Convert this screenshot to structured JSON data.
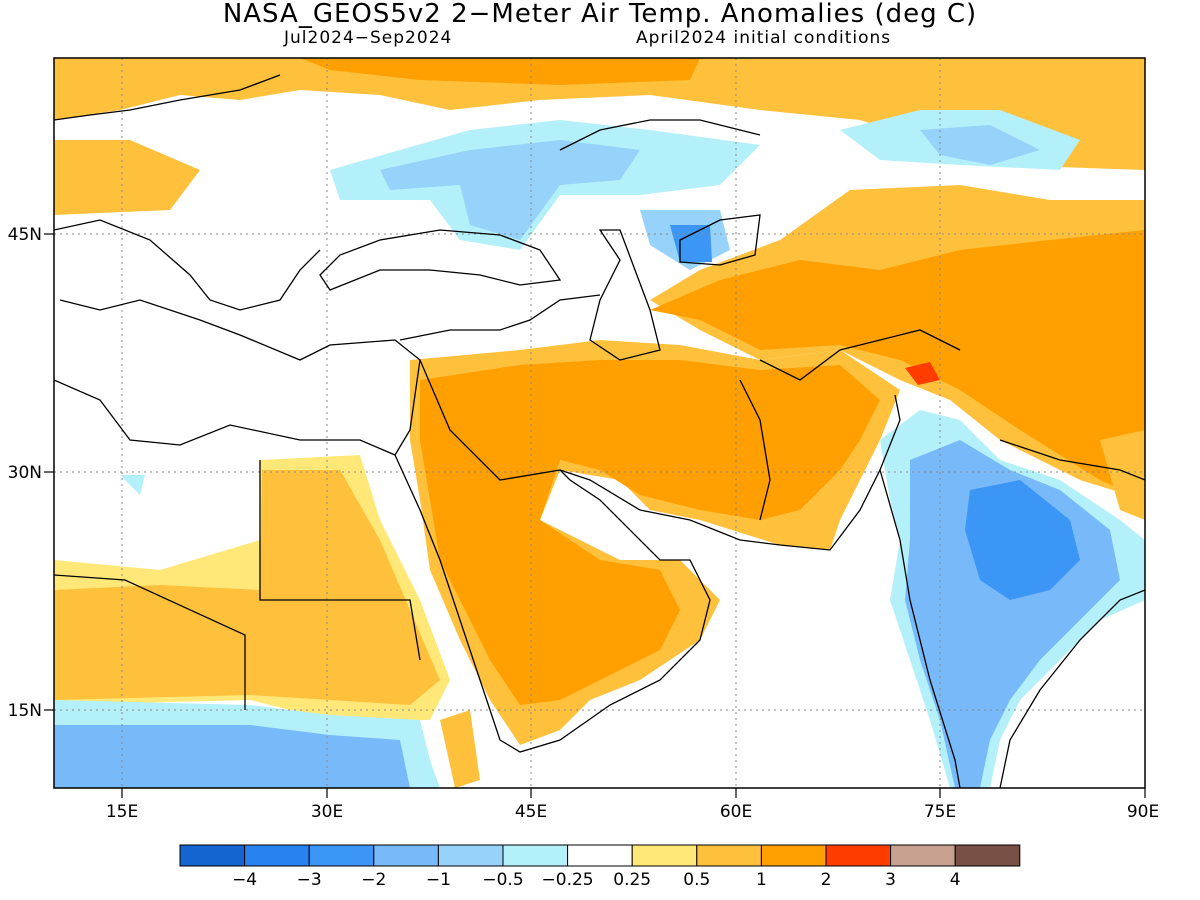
{
  "title": "NASA_GEOS5v2 2−Meter Air Temp. Anomalies (deg C)",
  "subtitle_left": "Jul2024−Sep2024",
  "subtitle_right": "April2024 initial conditions",
  "map": {
    "lon_range": [
      10,
      90
    ],
    "lat_range": [
      10,
      55
    ],
    "x_ticks": [
      {
        "lon": 15,
        "label": "15E"
      },
      {
        "lon": 30,
        "label": "30E"
      },
      {
        "lon": 45,
        "label": "45E"
      },
      {
        "lon": 60,
        "label": "60E"
      },
      {
        "lon": 75,
        "label": "75E"
      },
      {
        "lon": 90,
        "label": "90E"
      }
    ],
    "y_ticks": [
      {
        "lat": 45,
        "label": "45N"
      },
      {
        "lat": 30,
        "label": "30N"
      },
      {
        "lat": 15,
        "label": "15N"
      }
    ],
    "grid": "dotted"
  },
  "colorbar": {
    "colors": [
      "#1464d2",
      "#2882f0",
      "#3c96f5",
      "#78b9fa",
      "#96d2fa",
      "#b4f0fa",
      "#ffffff",
      "#ffe878",
      "#ffc03c",
      "#ffa000",
      "#ff3c00",
      "#c8a090",
      "#785046"
    ],
    "labels": [
      "−4",
      "−3",
      "−2",
      "−1",
      "−0.5",
      "−0.25",
      "0.25",
      "0.5",
      "1",
      "2",
      "3",
      "4"
    ]
  }
}
